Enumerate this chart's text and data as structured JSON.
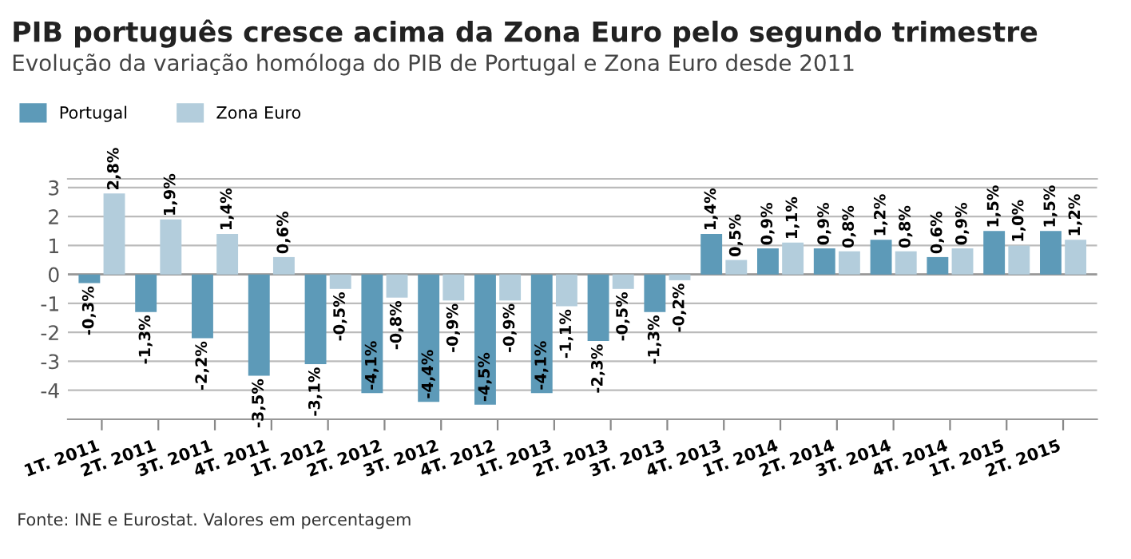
{
  "chart_data": {
    "type": "bar",
    "title": "PIB português cresce acima da Zona Euro pelo segundo trimestre",
    "subtitle": "Evolução da variação homóloga do PIB de Portugal e Zona Euro desde 2011",
    "categories": [
      "1T. 2011",
      "2T. 2011",
      "3T. 2011",
      "4T. 2011",
      "1T. 2012",
      "2T. 2012",
      "3T. 2012",
      "4T. 2012",
      "1T. 2013",
      "2T. 2013",
      "3T. 2013",
      "4T. 2013",
      "1T. 2014",
      "2T. 2014",
      "3T. 2014",
      "4T. 2014",
      "1T. 2015",
      "2T. 2015"
    ],
    "series": [
      {
        "name": "Portugal",
        "color": "#5d9ab8",
        "values": [
          -0.3,
          -1.3,
          -2.2,
          -3.5,
          -3.1,
          -4.1,
          -4.4,
          -4.5,
          -4.1,
          -2.3,
          -1.3,
          1.4,
          0.9,
          0.9,
          1.2,
          0.6,
          1.5,
          1.5
        ],
        "value_labels": [
          "-0,3%",
          "-1,3%",
          "-2,2%",
          "-3,5%",
          "-3,1%",
          "-4,1%",
          "-4,4%",
          "-4,5%",
          "-4,1%",
          "-2,3%",
          "-1,3%",
          "1,4%",
          "0,9%",
          "0,9%",
          "1,2%",
          "0,6%",
          "1,5%",
          "1,5%"
        ]
      },
      {
        "name": "Zona Euro",
        "color": "#b3cddc",
        "values": [
          2.8,
          1.9,
          1.4,
          0.6,
          -0.5,
          -0.8,
          -0.9,
          -0.9,
          -1.1,
          -0.5,
          -0.2,
          0.5,
          1.1,
          0.8,
          0.8,
          0.9,
          1.0,
          1.2
        ],
        "value_labels": [
          "2,8%",
          "1,9%",
          "1,4%",
          "0,6%",
          "-0,5%",
          "-0,8%",
          "-0,9%",
          "-0,9%",
          "-1,1%",
          "-0,5%",
          "-0,2%",
          "0,5%",
          "1,1%",
          "0,8%",
          "0,8%",
          "0,9%",
          "1,0%",
          "1,2%"
        ]
      }
    ],
    "ylim": [
      -5,
      3.3
    ],
    "yticks": [
      -4,
      -3,
      -2,
      -1,
      0,
      1,
      2,
      3
    ],
    "grid": "y",
    "legend": "top left",
    "annotations": [
      "Fonte: INE e Eurostat. Valores em percentagem"
    ]
  }
}
